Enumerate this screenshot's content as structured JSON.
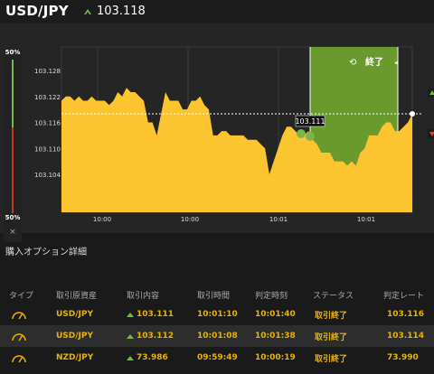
{
  "header": {
    "pair": "USD/JPY",
    "price": "103.118"
  },
  "gauge": {
    "top_pct": "50%",
    "bottom_pct": "50%",
    "close": "×"
  },
  "chart": {
    "y_ticks": [
      "103.128",
      "103.122",
      "103.116",
      "103.110",
      "103.104"
    ],
    "x_ticks": [
      "10:00",
      "10:00",
      "10:01",
      "10:01"
    ],
    "entry_label": "103.111",
    "panel_label": "終了",
    "colors": {
      "area": "#fcc530",
      "panel": "#6a9a2e",
      "bg": "#252525"
    }
  },
  "chart_data": {
    "type": "area",
    "y_axis_ticks": [
      103.128,
      103.122,
      103.116,
      103.11,
      103.104
    ],
    "current_price": 103.118,
    "entry_price": 103.111,
    "series": [
      {
        "values": [
          103.121,
          103.122,
          103.122,
          103.121,
          103.122,
          103.121,
          103.121,
          103.122,
          103.121,
          103.121,
          103.121,
          103.12,
          103.121,
          103.123,
          103.122,
          103.124,
          103.123,
          103.123,
          103.122,
          103.121,
          103.116,
          103.116,
          103.113,
          103.118,
          103.123,
          103.121,
          103.121,
          103.121,
          103.119,
          103.119,
          103.121,
          103.121,
          103.122,
          103.12,
          103.119,
          103.113,
          103.113,
          103.114,
          103.114,
          103.113,
          103.113,
          103.113,
          103.113,
          103.112,
          103.112,
          103.112,
          103.111,
          103.11,
          103.104,
          103.107,
          103.11,
          103.113,
          103.115,
          103.115,
          103.114,
          103.113,
          103.113,
          103.114,
          103.112,
          103.111,
          103.109,
          103.109,
          103.109,
          103.107,
          103.107,
          103.107,
          103.106,
          103.107,
          103.106,
          103.109,
          103.11,
          103.113,
          103.113,
          103.113,
          103.115,
          103.116,
          103.116,
          103.114,
          103.114,
          103.115,
          103.116,
          103.118
        ]
      }
    ]
  },
  "section": {
    "title": "購入オプション詳細"
  },
  "table": {
    "headers": [
      "タイプ",
      "取引原資産",
      "取引内容",
      "取引時間",
      "判定時刻",
      "ステータス",
      "判定レート"
    ],
    "rows": [
      {
        "asset": "USD/JPY",
        "content": "103.111",
        "time": "10:01:10",
        "judge": "10:01:40",
        "status": "取引終了",
        "rate": "103.116"
      },
      {
        "asset": "USD/JPY",
        "content": "103.112",
        "time": "10:01:08",
        "judge": "10:01:38",
        "status": "取引終了",
        "rate": "103.114"
      },
      {
        "asset": "NZD/JPY",
        "content": "73.986",
        "time": "09:59:49",
        "judge": "10:00:19",
        "status": "取引終了",
        "rate": "73.990"
      }
    ]
  }
}
